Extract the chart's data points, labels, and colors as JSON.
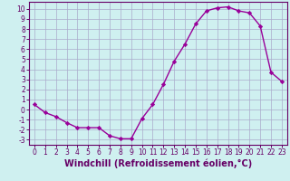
{
  "x": [
    0,
    1,
    2,
    3,
    4,
    5,
    6,
    7,
    8,
    9,
    10,
    11,
    12,
    13,
    14,
    15,
    16,
    17,
    18,
    19,
    20,
    21,
    22,
    23
  ],
  "y": [
    0.5,
    -0.3,
    -0.7,
    -1.3,
    -1.8,
    -1.8,
    -1.8,
    -2.6,
    -2.9,
    -2.9,
    -0.9,
    0.5,
    2.5,
    4.8,
    6.5,
    8.5,
    9.8,
    10.1,
    10.2,
    9.8,
    9.6,
    8.3,
    3.7,
    2.8
  ],
  "line_color": "#990099",
  "marker": "D",
  "marker_size": 2.2,
  "bg_color": "#cff0f0",
  "grid_color": "#aaaacc",
  "xlabel": "Windchill (Refroidissement éolien,°C)",
  "xlim": [
    -0.5,
    23.5
  ],
  "ylim": [
    -3.5,
    10.7
  ],
  "xticks": [
    0,
    1,
    2,
    3,
    4,
    5,
    6,
    7,
    8,
    9,
    10,
    11,
    12,
    13,
    14,
    15,
    16,
    17,
    18,
    19,
    20,
    21,
    22,
    23
  ],
  "yticks": [
    -3,
    -2,
    -1,
    0,
    1,
    2,
    3,
    4,
    5,
    6,
    7,
    8,
    9,
    10
  ],
  "tick_fontsize": 5.5,
  "xlabel_fontsize": 7.0,
  "line_width": 1.0,
  "axis_color": "#660066"
}
